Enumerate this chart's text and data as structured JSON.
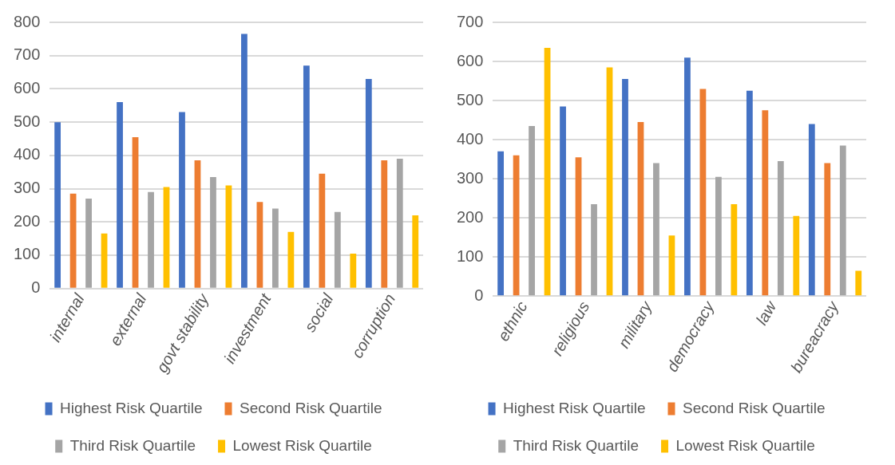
{
  "chart_data": [
    {
      "type": "bar",
      "categories": [
        "internal",
        "external",
        "govt stability",
        "investment",
        "social",
        "corruption"
      ],
      "series": [
        {
          "name": "Highest Risk Quartile",
          "color": "#4472c4",
          "values": [
            500,
            560,
            530,
            765,
            670,
            630
          ]
        },
        {
          "name": "Second Risk Quartile",
          "color": "#ed7d31",
          "values": [
            285,
            455,
            385,
            260,
            345,
            385
          ]
        },
        {
          "name": "Third Risk Quartile",
          "color": "#a5a5a5",
          "values": [
            270,
            290,
            335,
            240,
            230,
            390
          ]
        },
        {
          "name": "Lowest Risk Quartile",
          "color": "#ffc000",
          "values": [
            165,
            305,
            310,
            170,
            105,
            220
          ]
        }
      ],
      "ylim": [
        0,
        800
      ],
      "yticks": [
        0,
        100,
        200,
        300,
        400,
        500,
        600,
        700,
        800
      ],
      "grid": "y",
      "legend": "bottom"
    },
    {
      "type": "bar",
      "categories": [
        "ethnic",
        "religious",
        "military",
        "democracy",
        "law",
        "bureacracy"
      ],
      "series": [
        {
          "name": "Highest Risk Quartile",
          "color": "#4472c4",
          "values": [
            370,
            485,
            555,
            610,
            525,
            440
          ]
        },
        {
          "name": "Second Risk Quartile",
          "color": "#ed7d31",
          "values": [
            360,
            355,
            445,
            530,
            475,
            340
          ]
        },
        {
          "name": "Third Risk Quartile",
          "color": "#a5a5a5",
          "values": [
            435,
            235,
            340,
            305,
            345,
            385
          ]
        },
        {
          "name": "Lowest Risk Quartile",
          "color": "#ffc000",
          "values": [
            635,
            585,
            155,
            235,
            205,
            65
          ]
        }
      ],
      "ylim": [
        0,
        700
      ],
      "yticks": [
        0,
        100,
        200,
        300,
        400,
        500,
        600,
        700
      ],
      "grid": "y",
      "legend": "bottom"
    }
  ]
}
